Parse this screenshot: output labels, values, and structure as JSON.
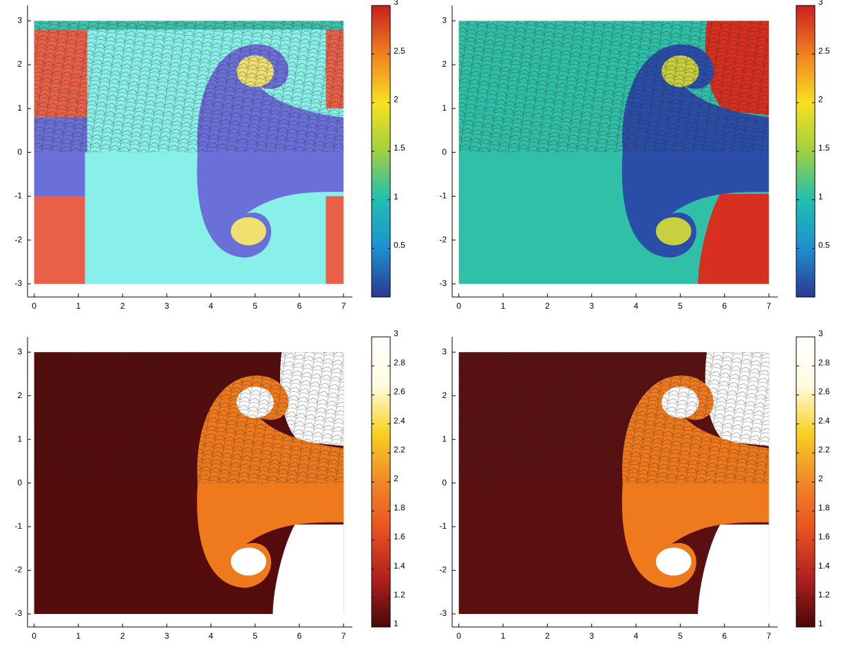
{
  "chart_data": [
    {
      "type": "field",
      "xlim": [
        -0.15,
        7.2
      ],
      "ylim": [
        -3.3,
        3.35
      ],
      "xticks": [
        0,
        1,
        2,
        3,
        4,
        5,
        6,
        7
      ],
      "yticks": [
        -3,
        -2,
        -1,
        0,
        1,
        2,
        3
      ],
      "colorbar": {
        "clim": [
          0,
          3
        ],
        "ticks": [
          0.5,
          1,
          1.5,
          2,
          2.5,
          3
        ],
        "colormap": [
          "#2b3990",
          "#1f8fd0",
          "#1ec0b0",
          "#a0d040",
          "#f8e020",
          "#f08020",
          "#c82020"
        ]
      }
    },
    {
      "type": "field",
      "xlim": [
        -0.15,
        7.2
      ],
      "ylim": [
        -3.3,
        3.35
      ],
      "xticks": [
        0,
        1,
        2,
        3,
        4,
        5,
        6,
        7
      ],
      "yticks": [
        -3,
        -2,
        -1,
        0,
        1,
        2,
        3
      ],
      "colorbar": {
        "clim": [
          0,
          3
        ],
        "ticks": [
          0.5,
          1,
          1.5,
          2,
          2.5,
          3
        ],
        "colormap": [
          "#2b3990",
          "#1f8fd0",
          "#1ec0b0",
          "#a0d040",
          "#f8e020",
          "#f08020",
          "#c82020"
        ]
      }
    },
    {
      "type": "field",
      "xlim": [
        -0.15,
        7.2
      ],
      "ylim": [
        -3.3,
        3.35
      ],
      "xticks": [
        0,
        1,
        2,
        3,
        4,
        5,
        6,
        7
      ],
      "yticks": [
        -3,
        -2,
        -1,
        0,
        1,
        2,
        3
      ],
      "colorbar": {
        "clim": [
          1,
          3
        ],
        "ticks": [
          1,
          1.2,
          1.4,
          1.6,
          1.8,
          2,
          2.2,
          2.4,
          2.6,
          2.8,
          3
        ],
        "colormap": [
          "#4a0808",
          "#b02020",
          "#e85020",
          "#f08828",
          "#f8d020",
          "#fffce0",
          "#ffffff"
        ]
      }
    },
    {
      "type": "field",
      "xlim": [
        -0.15,
        7.2
      ],
      "ylim": [
        -3.3,
        3.35
      ],
      "xticks": [
        0,
        1,
        2,
        3,
        4,
        5,
        6,
        7
      ],
      "yticks": [
        -3,
        -2,
        -1,
        0,
        1,
        2,
        3
      ],
      "colorbar": {
        "clim": [
          1,
          3
        ],
        "ticks": [
          1,
          1.2,
          1.4,
          1.6,
          1.8,
          2,
          2.2,
          2.4,
          2.6,
          2.8,
          3
        ],
        "colormap": [
          "#4a0808",
          "#b02020",
          "#e85020",
          "#f08828",
          "#f8d020",
          "#fffce0",
          "#ffffff"
        ]
      }
    }
  ]
}
